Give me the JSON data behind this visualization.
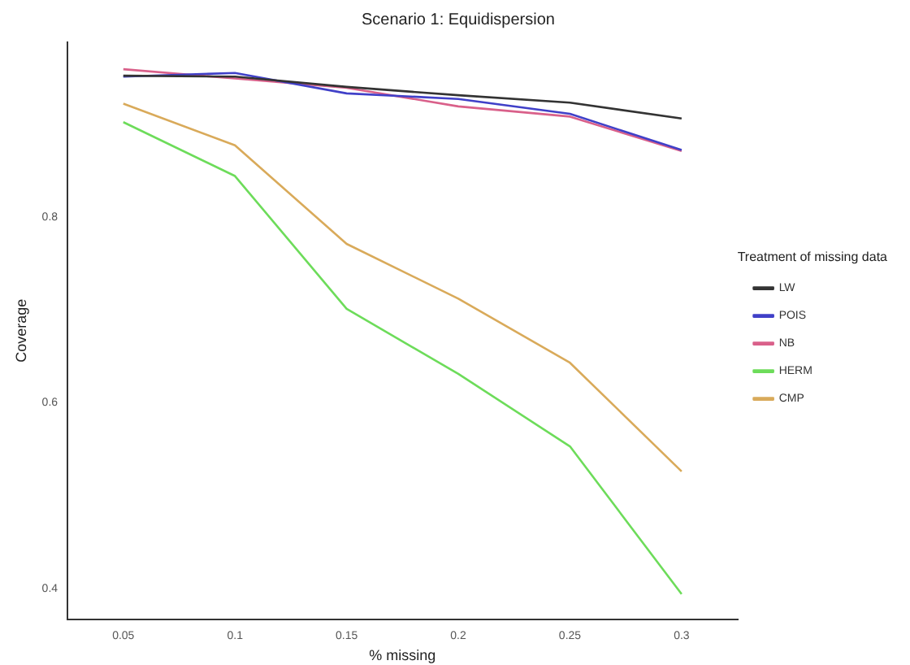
{
  "chart_data": {
    "type": "line",
    "title": "Scenario 1: Equidispersion",
    "xlabel": "% missing",
    "ylabel": "Coverage",
    "legend_title": "Treatment of missing data",
    "legend": "right",
    "grid": false,
    "marker": "none",
    "line_style": "solid",
    "categories": [
      "0.05",
      "0.1",
      "0.15",
      "0.2",
      "0.25",
      "0.3"
    ],
    "ylim": [
      0.367,
      0.988
    ],
    "yticks": [
      0.4,
      0.6,
      0.8
    ],
    "series": [
      {
        "name": "LW",
        "color": "#333333",
        "values": [
          0.952,
          0.951,
          0.94,
          0.931,
          0.923,
          0.906
        ]
      },
      {
        "name": "POIS",
        "color": "#4040c8",
        "values": [
          0.951,
          0.955,
          0.933,
          0.927,
          0.911,
          0.872
        ]
      },
      {
        "name": "NB",
        "color": "#d9608a",
        "values": [
          0.959,
          0.949,
          0.939,
          0.919,
          0.908,
          0.871
        ]
      },
      {
        "name": "HERM",
        "color": "#6ddc5a",
        "values": [
          0.902,
          0.844,
          0.701,
          0.631,
          0.553,
          0.394
        ]
      },
      {
        "name": "CMP",
        "color": "#d9aa5a",
        "values": [
          0.922,
          0.877,
          0.771,
          0.712,
          0.643,
          0.526
        ]
      }
    ]
  }
}
